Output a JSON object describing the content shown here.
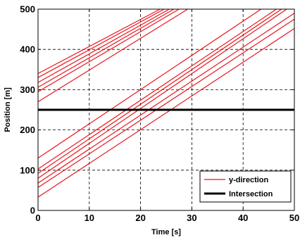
{
  "chart_data": {
    "type": "line",
    "title": "",
    "xlabel": "Time [s]",
    "ylabel": "Position [m]",
    "xlim": [
      0,
      50
    ],
    "ylim": [
      0,
      500
    ],
    "xticks": [
      "0",
      "10",
      "20",
      "30",
      "40",
      "50"
    ],
    "yticks": [
      "0",
      "100",
      "200",
      "300",
      "400",
      "500"
    ],
    "grid": true,
    "legend_position": "bottom-right",
    "colors": {
      "y_direction": "#e8141b",
      "intersection": "#000000"
    },
    "legend": [
      {
        "label": "y-direction",
        "color": "#e8141b"
      },
      {
        "label": "Intersection",
        "color": "#000000"
      }
    ],
    "series": [
      {
        "group": "y-direction",
        "x": [
          0,
          23.8
        ],
        "y": [
          340,
          500
        ]
      },
      {
        "group": "y-direction",
        "x": [
          0,
          24.6
        ],
        "y": [
          330,
          500
        ]
      },
      {
        "group": "y-direction",
        "x": [
          0,
          25.6
        ],
        "y": [
          318,
          500
        ]
      },
      {
        "group": "y-direction",
        "x": [
          0,
          26.5
        ],
        "y": [
          306,
          500
        ]
      },
      {
        "group": "y-direction",
        "x": [
          0,
          27.5
        ],
        "y": [
          295,
          500
        ]
      },
      {
        "group": "y-direction",
        "x": [
          0,
          29.2
        ],
        "y": [
          270,
          500
        ]
      },
      {
        "group": "y-direction",
        "x": [
          0,
          43.5
        ],
        "y": [
          130,
          500
        ]
      },
      {
        "group": "y-direction",
        "x": [
          0,
          46.5
        ],
        "y": [
          103,
          500
        ]
      },
      {
        "group": "y-direction",
        "x": [
          0,
          47.5
        ],
        "y": [
          92,
          500
        ]
      },
      {
        "group": "y-direction",
        "x": [
          0,
          48.5
        ],
        "y": [
          80,
          500
        ]
      },
      {
        "group": "y-direction",
        "x": [
          0,
          50
        ],
        "y": [
          68,
          490
        ]
      },
      {
        "group": "y-direction",
        "x": [
          0,
          50
        ],
        "y": [
          57,
          475
        ]
      },
      {
        "group": "y-direction",
        "x": [
          0,
          50
        ],
        "y": [
          33,
          452
        ]
      },
      {
        "group": "Intersection",
        "x": [
          0,
          50
        ],
        "y": [
          250,
          250
        ]
      }
    ]
  }
}
